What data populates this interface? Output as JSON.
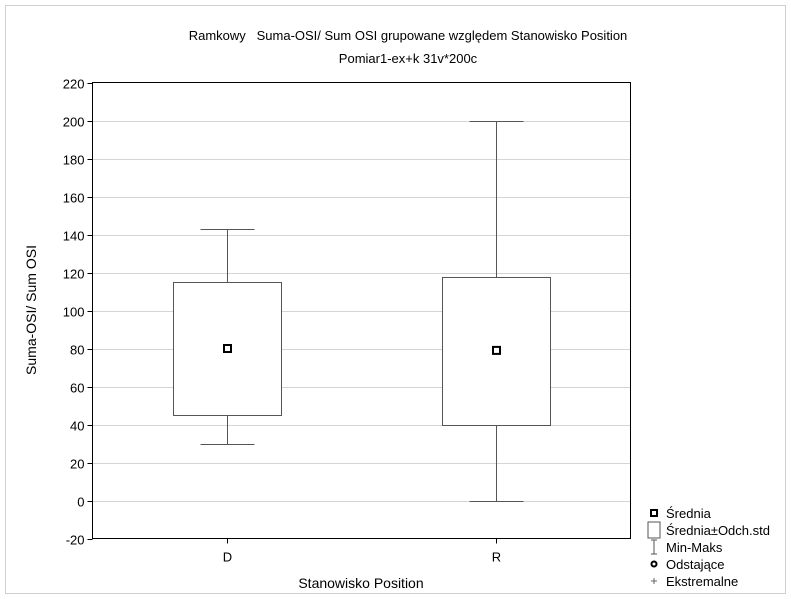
{
  "chart_data": {
    "type": "box",
    "title": "Ramkowy   Suma-OSI/ Sum OSI grupowane względem Stanowisko Position",
    "subtitle": "Pomiar1-ex+k 31v*200c",
    "xlabel": "Stanowisko Position",
    "ylabel": "Suma-OSI/ Sum OSI",
    "ylim": [
      -20,
      220
    ],
    "yticks": [
      -20,
      0,
      20,
      40,
      60,
      80,
      100,
      120,
      140,
      160,
      180,
      200,
      220
    ],
    "grid": true,
    "legend_position": "bottom-right",
    "categories": [
      "D",
      "R"
    ],
    "groups": [
      {
        "category": "D",
        "min": 30,
        "box_low": 45,
        "mean": 80,
        "box_high": 115,
        "max": 143
      },
      {
        "category": "R",
        "min": 0,
        "box_low": 39.5,
        "mean": 79,
        "box_high": 117.5,
        "max": 200
      }
    ],
    "legend": [
      {
        "symbol": "mean",
        "label": "Średnia"
      },
      {
        "symbol": "box",
        "label": "Średnia±Odch.std"
      },
      {
        "symbol": "whisker",
        "label": "Min-Maks"
      },
      {
        "symbol": "outlier",
        "label": "Odstające"
      },
      {
        "symbol": "extreme",
        "label": "Ekstremalne"
      }
    ]
  }
}
